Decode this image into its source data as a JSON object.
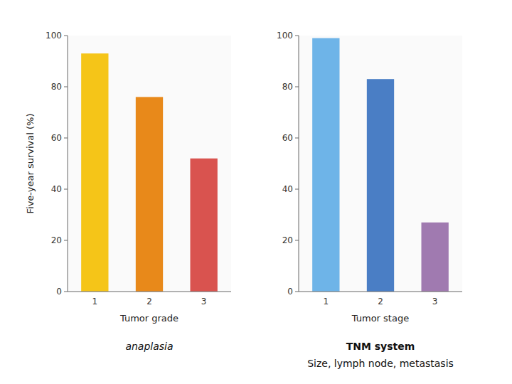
{
  "chart_data": [
    {
      "type": "bar",
      "xlabel": "Tumor grade",
      "ylabel": "Five-year survival (%)",
      "categories": [
        "1",
        "2",
        "3"
      ],
      "values": [
        93,
        76,
        52
      ],
      "colors": [
        "#F5C518",
        "#E8891A",
        "#D9534F"
      ],
      "ylim": [
        0,
        100
      ],
      "yticks": [
        0,
        20,
        40,
        60,
        80,
        100
      ],
      "annotations": [
        "anaplasia"
      ]
    },
    {
      "type": "bar",
      "xlabel": "Tumor stage",
      "categories": [
        "1",
        "2",
        "3"
      ],
      "values": [
        99,
        83,
        27
      ],
      "colors": [
        "#6EB4E8",
        "#4A7EC5",
        "#A07AB0"
      ],
      "ylim": [
        0,
        100
      ],
      "yticks": [
        0,
        20,
        40,
        60,
        80,
        100
      ],
      "annotations": [
        "TNM system",
        "Size, lymph node, metastasis"
      ]
    }
  ]
}
